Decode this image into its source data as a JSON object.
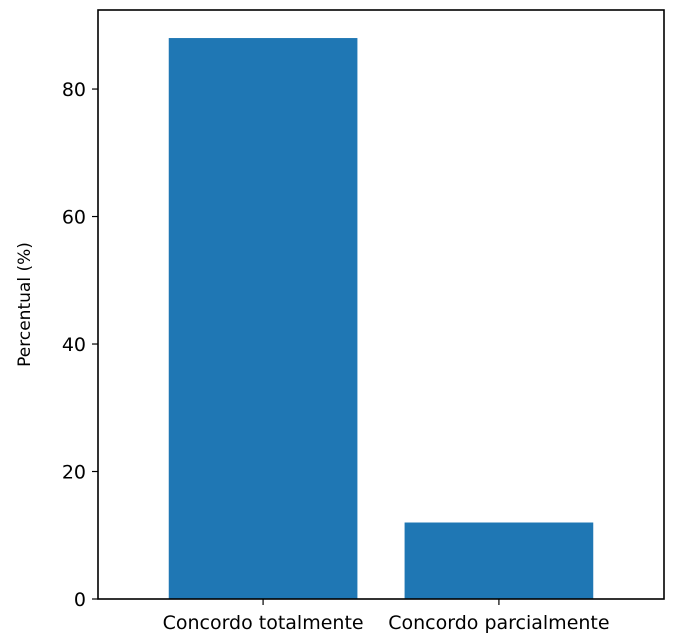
{
  "chart_data": {
    "type": "bar",
    "title": "",
    "xlabel": "",
    "ylabel": "Percentual (%)",
    "categories": [
      "Concordo totalmente",
      "Concordo parcialmente"
    ],
    "values": [
      88,
      12
    ],
    "ylim": [
      0,
      92.4
    ],
    "yticks": [
      0,
      20,
      40,
      60,
      80
    ],
    "grid": false,
    "legend": "none",
    "bar_color": "#1f77b4"
  }
}
